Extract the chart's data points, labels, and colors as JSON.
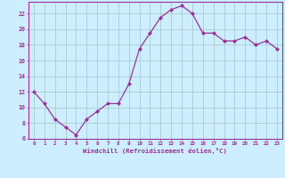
{
  "x": [
    0,
    1,
    2,
    3,
    4,
    5,
    6,
    7,
    8,
    9,
    10,
    11,
    12,
    13,
    14,
    15,
    16,
    17,
    18,
    19,
    20,
    21,
    22,
    23
  ],
  "y": [
    12,
    10.5,
    8.5,
    7.5,
    6.5,
    8.5,
    9.5,
    10.5,
    10.5,
    13,
    17.5,
    19.5,
    21.5,
    22.5,
    23,
    22,
    19.5,
    19.5,
    18.5,
    18.5,
    19,
    18,
    18.5,
    17.5
  ],
  "line_color": "#993399",
  "marker_color": "#993399",
  "bg_color": "#cceeff",
  "grid_color": "#aacccc",
  "tick_color": "#993399",
  "xlabel": "Windchill (Refroidissement éolien,°C)",
  "xlabel_color": "#993399",
  "ylim": [
    6,
    23.5
  ],
  "yticks": [
    6,
    8,
    10,
    12,
    14,
    16,
    18,
    20,
    22
  ],
  "xlim": [
    -0.5,
    23.5
  ],
  "spine_color": "#993399"
}
